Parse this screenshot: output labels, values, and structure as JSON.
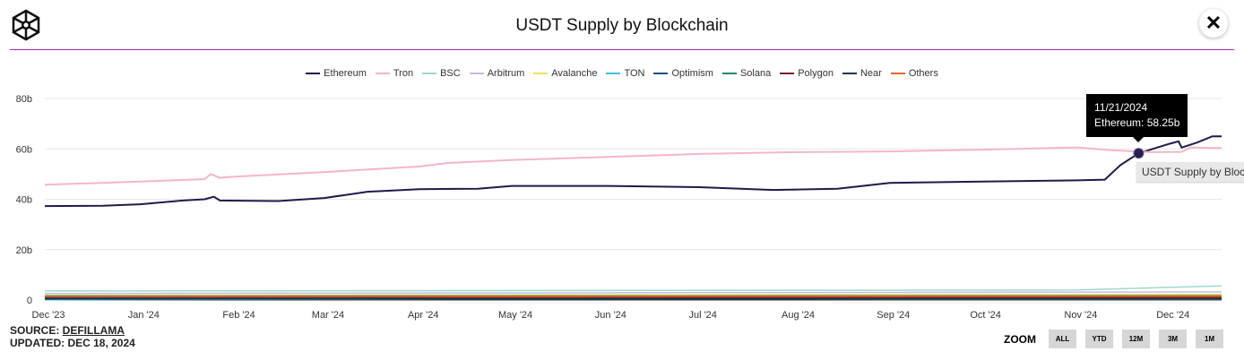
{
  "header": {
    "title": "USDT Supply by Blockchain",
    "close_label": "✕",
    "logo": "cube-logo"
  },
  "tooltip": {
    "date": "11/21/2024",
    "text": "Ethereum: 58.25b",
    "secondary": "USDT Supply by Blockchain"
  },
  "footer": {
    "source_label": "SOURCE: ",
    "source_link": "DEFILLAMA",
    "updated": "UPDATED: DEC 18, 2024"
  },
  "zoom": {
    "label": "ZOOM",
    "buttons": [
      "ALL",
      "YTD",
      "12M",
      "3M",
      "1M"
    ]
  },
  "chart_data": {
    "type": "line",
    "title": "USDT Supply by Blockchain",
    "legend_placement": "top",
    "grid": "horizontal",
    "ylim": [
      0,
      80
    ],
    "yticks": [
      "0",
      "20b",
      "40b",
      "60b",
      "80b"
    ],
    "ytick_values": [
      0,
      20,
      40,
      60,
      80
    ],
    "xlim": [
      "2023-12-01",
      "2024-12-18"
    ],
    "xticks": [
      "Dec '23",
      "Jan '24",
      "Feb '24",
      "Mar '24",
      "Apr '24",
      "May '24",
      "Jun '24",
      "Jul '24",
      "Aug '24",
      "Sep '24",
      "Oct '24",
      "Nov '24",
      "Dec '24"
    ],
    "xtick_dates": [
      "2023-12-01",
      "2024-01-01",
      "2024-02-01",
      "2024-03-01",
      "2024-04-01",
      "2024-05-01",
      "2024-06-01",
      "2024-07-01",
      "2024-08-01",
      "2024-09-01",
      "2024-10-01",
      "2024-11-01",
      "2024-12-01"
    ],
    "highlight": {
      "series": "Ethereum",
      "date": "2024-11-21",
      "value": 58.25
    },
    "series": [
      {
        "name": "Ethereum",
        "color": "#1f1a4a",
        "points": [
          [
            "2023-12-01",
            37.3
          ],
          [
            "2023-12-20",
            37.4
          ],
          [
            "2024-01-01",
            38
          ],
          [
            "2024-01-15",
            39.5
          ],
          [
            "2024-01-22",
            40
          ],
          [
            "2024-01-25",
            41
          ],
          [
            "2024-01-27",
            39.5
          ],
          [
            "2024-02-15",
            39.3
          ],
          [
            "2024-03-01",
            40.5
          ],
          [
            "2024-03-15",
            43
          ],
          [
            "2024-04-01",
            44
          ],
          [
            "2024-04-20",
            44.2
          ],
          [
            "2024-05-01",
            45.3
          ],
          [
            "2024-06-01",
            45.3
          ],
          [
            "2024-07-01",
            44.8
          ],
          [
            "2024-07-25",
            43.7
          ],
          [
            "2024-08-15",
            44.2
          ],
          [
            "2024-09-01",
            46.5
          ],
          [
            "2024-10-01",
            47
          ],
          [
            "2024-11-01",
            47.5
          ],
          [
            "2024-11-10",
            47.8
          ],
          [
            "2024-11-15",
            53.5
          ],
          [
            "2024-11-21",
            58.25
          ],
          [
            "2024-12-01",
            62
          ],
          [
            "2024-12-04",
            63
          ],
          [
            "2024-12-05",
            60.5
          ],
          [
            "2024-12-10",
            62.5
          ],
          [
            "2024-12-15",
            65
          ],
          [
            "2024-12-18",
            65
          ]
        ]
      },
      {
        "name": "Tron",
        "color": "#f4b6c6",
        "points": [
          [
            "2023-12-01",
            45.8
          ],
          [
            "2024-01-01",
            47
          ],
          [
            "2024-01-22",
            48
          ],
          [
            "2024-01-24",
            50
          ],
          [
            "2024-01-27",
            48.5
          ],
          [
            "2024-02-01",
            49
          ],
          [
            "2024-03-01",
            50.8
          ],
          [
            "2024-04-01",
            53
          ],
          [
            "2024-04-10",
            54.4
          ],
          [
            "2024-05-01",
            55.6
          ],
          [
            "2024-06-01",
            56.8
          ],
          [
            "2024-07-01",
            58
          ],
          [
            "2024-08-01",
            58.7
          ],
          [
            "2024-09-01",
            59
          ],
          [
            "2024-10-01",
            59.7
          ],
          [
            "2024-11-01",
            60.6
          ],
          [
            "2024-11-12",
            59.5
          ],
          [
            "2024-11-25",
            58.7
          ],
          [
            "2024-12-05",
            58.8
          ],
          [
            "2024-12-08",
            60.6
          ],
          [
            "2024-12-18",
            60.3
          ]
        ]
      },
      {
        "name": "BSC",
        "color": "#9fd9cf",
        "points": [
          [
            "2023-12-01",
            3.6
          ],
          [
            "2024-04-01",
            3.7
          ],
          [
            "2024-11-01",
            4
          ],
          [
            "2024-12-18",
            5.6
          ]
        ]
      },
      {
        "name": "Arbitrum",
        "color": "#c9b8e3",
        "points": [
          [
            "2023-12-01",
            2.6
          ],
          [
            "2024-12-18",
            3.2
          ]
        ]
      },
      {
        "name": "Avalanche",
        "color": "#f0e05a",
        "points": [
          [
            "2023-12-01",
            1.9
          ],
          [
            "2024-12-18",
            2.2
          ]
        ]
      },
      {
        "name": "TON",
        "color": "#3cc4e0",
        "points": [
          [
            "2023-12-01",
            0.1
          ],
          [
            "2024-04-01",
            0.4
          ],
          [
            "2024-12-18",
            1.2
          ]
        ]
      },
      {
        "name": "Optimism",
        "color": "#1a4e8a",
        "points": [
          [
            "2023-12-01",
            0.7
          ],
          [
            "2024-12-18",
            0.7
          ]
        ]
      },
      {
        "name": "Solana",
        "color": "#1f8a72",
        "points": [
          [
            "2023-12-01",
            1.6
          ],
          [
            "2024-12-18",
            1.7
          ]
        ]
      },
      {
        "name": "Polygon",
        "color": "#7a1a2e",
        "points": [
          [
            "2023-12-01",
            1.1
          ],
          [
            "2024-12-18",
            1.0
          ]
        ]
      },
      {
        "name": "Near",
        "color": "#0f3a40",
        "points": [
          [
            "2023-12-01",
            0.4
          ],
          [
            "2024-12-18",
            0.5
          ]
        ]
      },
      {
        "name": "Others",
        "color": "#e8652a",
        "points": [
          [
            "2023-12-01",
            1.4
          ],
          [
            "2024-12-18",
            1.5
          ]
        ]
      }
    ]
  }
}
